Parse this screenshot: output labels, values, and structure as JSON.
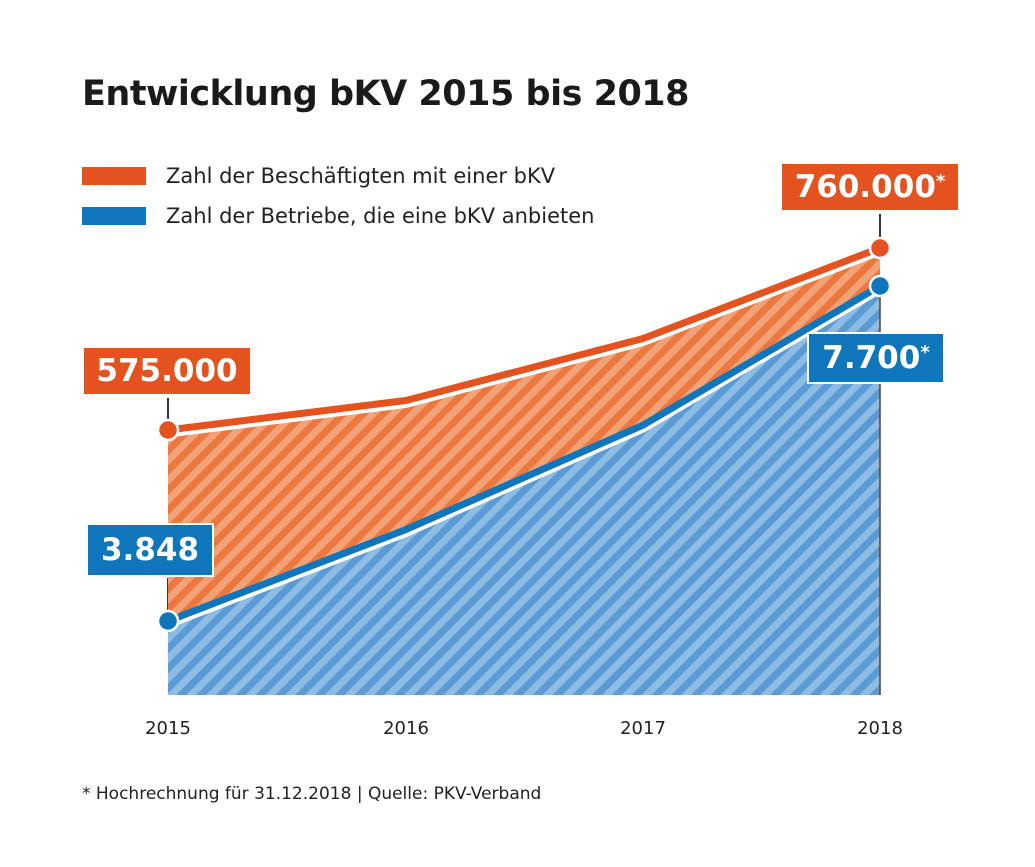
{
  "title": "Entwicklung bKV 2015 bis 2018",
  "footnote": "* Hochrechnung für 31.12.2018  |  Quelle: PKV-Verband",
  "colors": {
    "orange": "#e4531f",
    "blue": "#0f76bb"
  },
  "chart_data": {
    "type": "area",
    "title": "Entwicklung bKV 2015 bis 2018",
    "x": [
      "2015",
      "2016",
      "2017",
      "2018"
    ],
    "legend_position": "top-left",
    "grid": false,
    "series": [
      {
        "name": "Zahl der Beschäftigten mit einer bKV",
        "values": [
          575000,
          605000,
          668000,
          760000
        ],
        "color": "#e4531f",
        "labels": {
          "first": "575.000",
          "last": "760.000",
          "last_mark": "*"
        }
      },
      {
        "name": "Zahl der Betriebe, die eine bKV anbieten",
        "values": [
          3848,
          4900,
          6100,
          7700
        ],
        "color": "#0f76bb",
        "labels": {
          "first": "3.848",
          "last": "7.700",
          "last_mark": "*"
        }
      }
    ]
  }
}
